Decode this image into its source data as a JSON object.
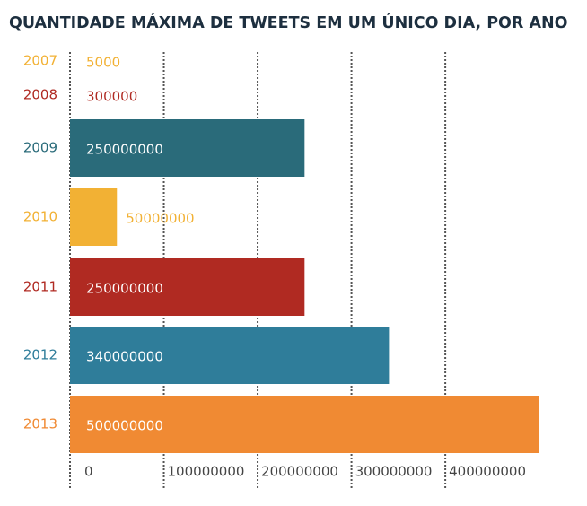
{
  "chart_data": {
    "type": "hbar",
    "title": "QUANTIDADE MÁXIMA DE TWEETS EM UM ÚNICO DIA, POR ANO",
    "categories": [
      "2007",
      "2008",
      "2009",
      "2010",
      "2011",
      "2012",
      "2013"
    ],
    "values": [
      5000,
      300000,
      250000000,
      50000000,
      250000000,
      340000000,
      500000000
    ],
    "colors": [
      "#f2b134",
      "#b02a22",
      "#2a6b7a",
      "#f2b134",
      "#b02a22",
      "#2f7d9a",
      "#f08a33"
    ],
    "xlim": [
      0,
      530000000
    ],
    "xticks": [
      0,
      100000000,
      200000000,
      300000000,
      400000000
    ],
    "grid": true
  }
}
